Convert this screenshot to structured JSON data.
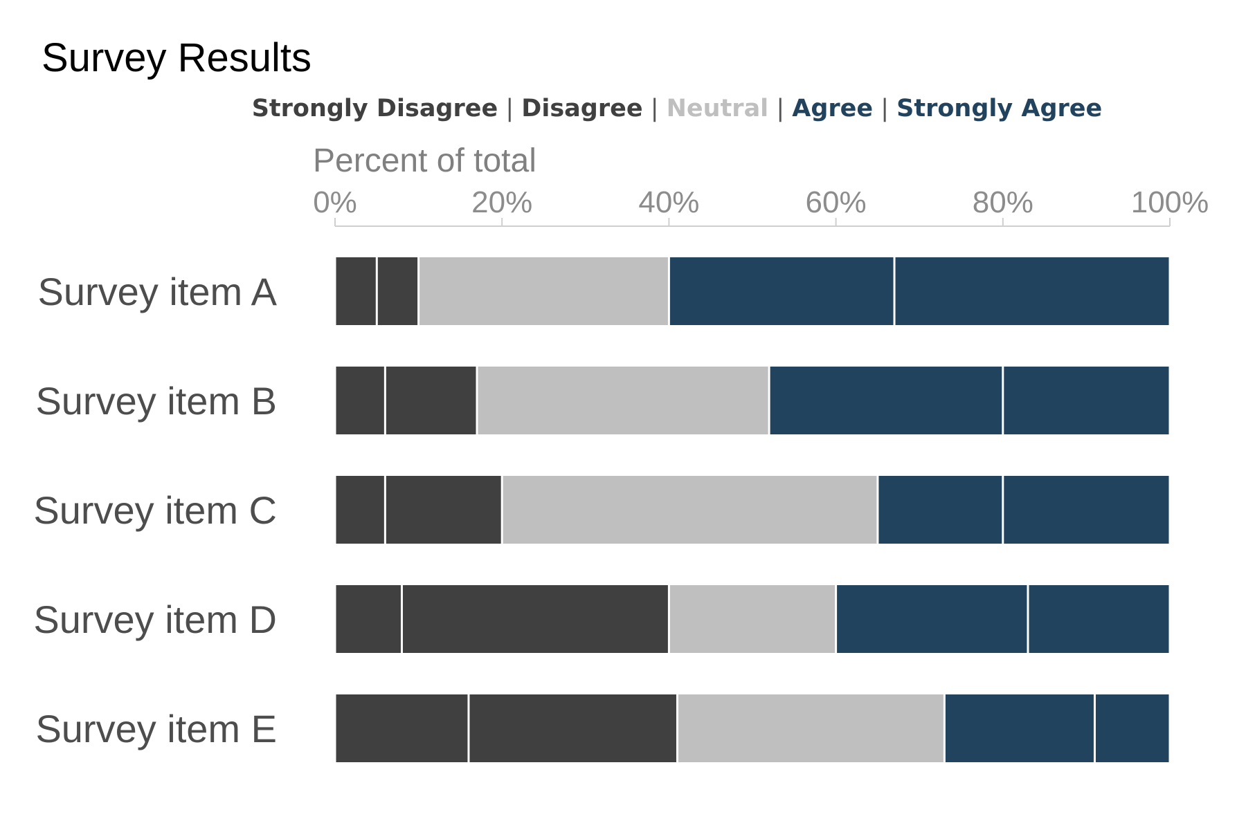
{
  "chart_data": {
    "type": "bar",
    "orientation": "horizontal",
    "stacked": true,
    "title": "Survey Results",
    "xlabel": "Percent of total",
    "ylabel": "",
    "xlim": [
      0,
      100
    ],
    "x_ticks": [
      "0%",
      "20%",
      "40%",
      "60%",
      "80%",
      "100%"
    ],
    "x_tick_values": [
      0,
      20,
      40,
      60,
      80,
      100
    ],
    "grid": false,
    "legend_placement": "top",
    "legend_separator": "|",
    "legend_separator_color": "#555555",
    "categories": [
      "Survey item A",
      "Survey item B",
      "Survey item C",
      "Survey item D",
      "Survey item E"
    ],
    "series": [
      {
        "name": "Strongly Disagree",
        "color": "#404040",
        "values": [
          5,
          6,
          6,
          8,
          16
        ]
      },
      {
        "name": "Disagree",
        "color": "#404040",
        "values": [
          5,
          11,
          14,
          32,
          25
        ]
      },
      {
        "name": "Neutral",
        "color": "#bfbfbf",
        "values": [
          30,
          35,
          45,
          20,
          32
        ]
      },
      {
        "name": "Agree",
        "color": "#22435e",
        "values": [
          27,
          28,
          15,
          23,
          18
        ]
      },
      {
        "name": "Strongly Agree",
        "color": "#22435e",
        "values": [
          33,
          20,
          20,
          17,
          9
        ]
      }
    ]
  }
}
